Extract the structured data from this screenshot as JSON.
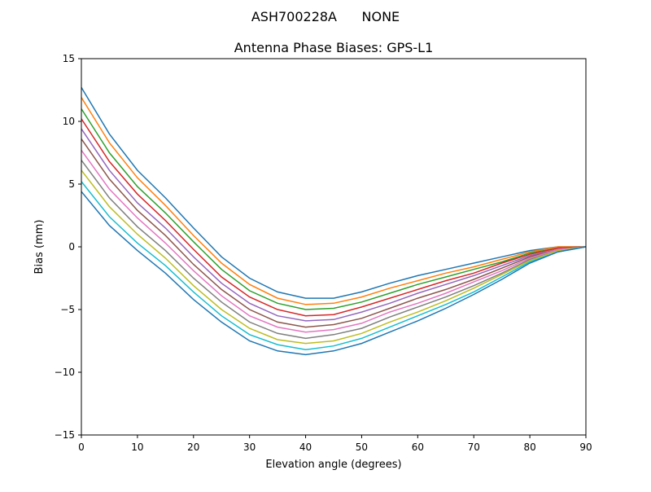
{
  "chart_data": {
    "type": "line",
    "suptitle": "ASH700228A      NONE",
    "title": "Antenna Phase Biases: GPS-L1",
    "xlabel": "Elevation angle (degrees)",
    "ylabel": "Bias (mm)",
    "xlim": [
      0,
      90
    ],
    "ylim": [
      -15,
      15
    ],
    "xticks": [
      0,
      10,
      20,
      30,
      40,
      50,
      60,
      70,
      80,
      90
    ],
    "yticks": [
      -15,
      -10,
      -5,
      0,
      5,
      10,
      15
    ],
    "ytick_labels": [
      "−15",
      "−10",
      "−5",
      "0",
      "5",
      "10",
      "15"
    ],
    "grid": false,
    "legend": "none",
    "colors": [
      "#1f77b4",
      "#ff7f0e",
      "#2ca02c",
      "#d62728",
      "#9467bd",
      "#8c564b",
      "#e377c2",
      "#7f7f7f",
      "#bcbd22",
      "#17becf"
    ],
    "x": [
      0,
      5,
      10,
      15,
      20,
      25,
      30,
      35,
      40,
      45,
      50,
      55,
      60,
      65,
      70,
      75,
      80,
      85,
      90
    ],
    "series": [
      {
        "values": [
          12.7,
          9.0,
          6.1,
          3.9,
          1.5,
          -0.8,
          -2.5,
          -3.6,
          -4.1,
          -4.1,
          -3.6,
          -2.9,
          -2.3,
          -1.8,
          -1.3,
          -0.8,
          -0.3,
          0,
          0
        ]
      },
      {
        "values": [
          11.9,
          8.3,
          5.5,
          3.3,
          0.9,
          -1.3,
          -3.0,
          -4.1,
          -4.6,
          -4.5,
          -4.0,
          -3.3,
          -2.7,
          -2.1,
          -1.6,
          -1.0,
          -0.4,
          0,
          0
        ]
      },
      {
        "values": [
          11.0,
          7.5,
          4.8,
          2.7,
          0.4,
          -1.8,
          -3.5,
          -4.5,
          -5.0,
          -4.9,
          -4.4,
          -3.7,
          -3.0,
          -2.4,
          -1.8,
          -1.2,
          -0.5,
          -0.1,
          0
        ]
      },
      {
        "values": [
          10.2,
          6.8,
          4.2,
          2.1,
          -0.2,
          -2.4,
          -4.0,
          -5.0,
          -5.5,
          -5.4,
          -4.8,
          -4.1,
          -3.4,
          -2.7,
          -2.1,
          -1.3,
          -0.6,
          -0.1,
          0
        ]
      },
      {
        "values": [
          9.4,
          6.1,
          3.5,
          1.5,
          -0.8,
          -2.9,
          -4.5,
          -5.5,
          -5.9,
          -5.8,
          -5.2,
          -4.5,
          -3.7,
          -3.0,
          -2.3,
          -1.5,
          -0.7,
          -0.2,
          0
        ]
      },
      {
        "values": [
          8.6,
          5.4,
          2.9,
          0.9,
          -1.4,
          -3.4,
          -5.0,
          -6.0,
          -6.4,
          -6.2,
          -5.7,
          -4.9,
          -4.1,
          -3.4,
          -2.6,
          -1.7,
          -0.8,
          -0.2,
          0
        ]
      },
      {
        "values": [
          7.7,
          4.6,
          2.3,
          0.3,
          -1.9,
          -3.9,
          -5.5,
          -6.4,
          -6.8,
          -6.6,
          -6.1,
          -5.2,
          -4.5,
          -3.7,
          -2.8,
          -1.9,
          -0.9,
          -0.2,
          0
        ]
      },
      {
        "values": [
          6.9,
          3.9,
          1.6,
          -0.3,
          -2.5,
          -4.4,
          -6.0,
          -6.9,
          -7.3,
          -7.0,
          -6.5,
          -5.6,
          -4.8,
          -4.0,
          -3.1,
          -2.1,
          -1.0,
          -0.3,
          0
        ]
      },
      {
        "values": [
          6.1,
          3.2,
          1.0,
          -0.9,
          -3.1,
          -5.0,
          -6.5,
          -7.4,
          -7.7,
          -7.5,
          -6.9,
          -6.0,
          -5.2,
          -4.3,
          -3.3,
          -2.2,
          -1.1,
          -0.3,
          0
        ]
      },
      {
        "values": [
          5.2,
          2.4,
          0.3,
          -1.5,
          -3.6,
          -5.5,
          -7.0,
          -7.8,
          -8.2,
          -7.9,
          -7.3,
          -6.4,
          -5.5,
          -4.6,
          -3.6,
          -2.4,
          -1.2,
          -0.4,
          0
        ]
      },
      {
        "values": [
          4.4,
          1.7,
          -0.3,
          -2.1,
          -4.2,
          -6.0,
          -7.5,
          -8.3,
          -8.6,
          -8.3,
          -7.7,
          -6.8,
          -5.9,
          -4.9,
          -3.8,
          -2.6,
          -1.3,
          -0.4,
          0
        ]
      }
    ]
  }
}
